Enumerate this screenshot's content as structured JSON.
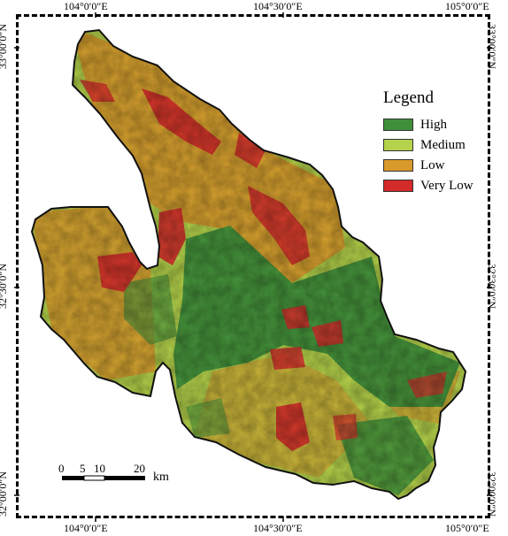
{
  "graticule": {
    "top": [
      "104°0′0″E",
      "104°30′0″E",
      "105°0′0″E"
    ],
    "bottom": [
      "104°0′0″E",
      "104°30′0″E",
      "105°0′0″E"
    ],
    "left": [
      "33°00′0″N",
      "32°30′0″N",
      "32°00′0″N"
    ],
    "right": [
      "33°00′0″N",
      "32°30′0″N",
      "32°00′0″N"
    ]
  },
  "legend": {
    "title": "Legend",
    "items": [
      {
        "label": "High",
        "color": "#3f8f3a"
      },
      {
        "label": "Medium",
        "color": "#b5d34a"
      },
      {
        "label": "Low",
        "color": "#d99a2b"
      },
      {
        "label": "Very Low",
        "color": "#d42a2a"
      }
    ]
  },
  "scale_bar": {
    "ticks": [
      "0",
      "5",
      "10",
      "20"
    ],
    "unit": "km"
  }
}
